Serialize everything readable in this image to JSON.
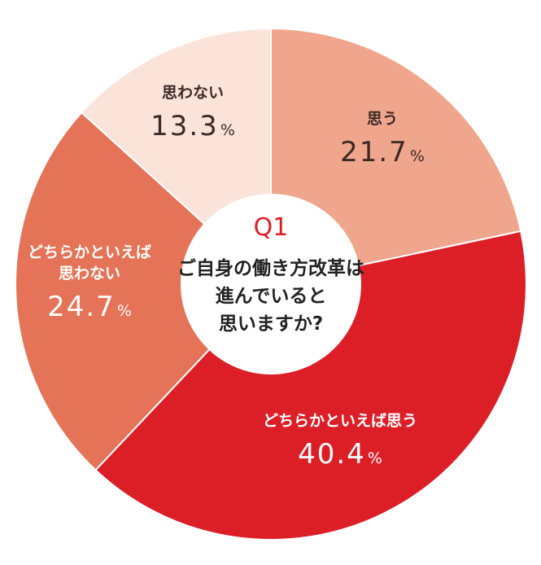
{
  "chart_data": {
    "type": "pie",
    "categories": [
      "思う",
      "どちらかといえば思う",
      "どちらかといえば思わない",
      "思わない"
    ],
    "values": [
      21.7,
      40.4,
      24.7,
      13.3
    ],
    "unit": "%",
    "colors": [
      "#efa68c",
      "#dc1f27",
      "#e57357",
      "#fbe3d9"
    ],
    "label_colors": [
      "#3b2a26",
      "#ffffff",
      "#ffffff",
      "#3b2a26"
    ],
    "slice_labels": [
      {
        "lines": [
          "思う"
        ],
        "value": "21.7"
      },
      {
        "lines": [
          "どちらかといえば思う"
        ],
        "value": "40.4"
      },
      {
        "lines": [
          "どちらかといえば",
          "思わない"
        ],
        "value": "24.7"
      },
      {
        "lines": [
          "思わない"
        ],
        "value": "13.3"
      }
    ],
    "donut_hole": true
  },
  "center": {
    "q": "Q1",
    "q_color": "#dc1f27",
    "lines": [
      "ご自身の働き方改革は",
      "進んでいると",
      "思いますか?"
    ]
  }
}
